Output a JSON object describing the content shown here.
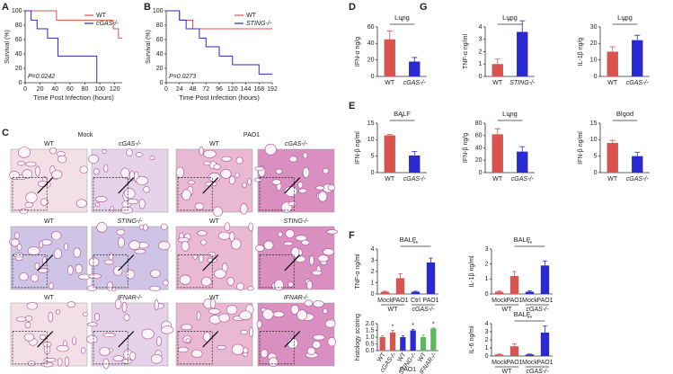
{
  "panel_letters": [
    "A",
    "B",
    "C",
    "D",
    "E",
    "F",
    "G"
  ],
  "histology": {
    "conditions": [
      "Mock",
      "PAO1"
    ],
    "rows": [
      [
        "WT",
        "cGAS-/-",
        "WT",
        "cGAS-/-"
      ],
      [
        "WT",
        "STING-/-",
        "WT",
        "STING-/-"
      ],
      [
        "WT",
        "IFNAR-/-",
        "WT",
        "IFNAR-/-"
      ]
    ]
  },
  "chart_data": [
    {
      "type": "line",
      "xlabel": "Time Post Infection (hours)",
      "ylabel": "Survival (%)",
      "annotation": "P=0.0242",
      "xlim": [
        0,
        130
      ],
      "xticks": [
        0,
        20,
        40,
        60,
        80,
        100,
        120
      ],
      "ylim": [
        0,
        100
      ],
      "yticks": [
        0,
        20,
        40,
        60,
        80,
        100
      ],
      "legend": "upper right",
      "series": [
        {
          "name": "WT",
          "color": "#d9534f",
          "x": [
            0,
            42,
            42,
            118,
            118,
            125,
            125,
            130
          ],
          "values": [
            100,
            100,
            87,
            87,
            75,
            75,
            62,
            62
          ]
        },
        {
          "name": "cGAS-/-",
          "color": "#2a2ad0",
          "x": [
            0,
            8,
            8,
            16,
            16,
            30,
            30,
            44,
            44,
            96,
            96
          ],
          "values": [
            100,
            100,
            87,
            87,
            75,
            75,
            62,
            62,
            37,
            37,
            0
          ]
        }
      ]
    },
    {
      "type": "line",
      "xlabel": "Time Post Infection (hours)",
      "ylabel": "Survival (%)",
      "annotation": "P=0.0273",
      "xlim": [
        0,
        192
      ],
      "xticks": [
        0,
        24,
        48,
        72,
        96,
        120,
        144,
        168,
        192
      ],
      "ylim": [
        0,
        100
      ],
      "yticks": [
        0,
        20,
        40,
        60,
        80,
        100
      ],
      "legend": "upper right",
      "series": [
        {
          "name": "WT",
          "color": "#d9534f",
          "x": [
            0,
            24,
            24,
            48,
            48,
            192
          ],
          "values": [
            100,
            100,
            87,
            87,
            75,
            75
          ]
        },
        {
          "name": "STING-/-",
          "color": "#2a2ad0",
          "x": [
            0,
            24,
            24,
            36,
            36,
            60,
            60,
            72,
            72,
            96,
            96,
            120,
            120,
            168,
            168,
            192
          ],
          "values": [
            100,
            100,
            87,
            87,
            75,
            75,
            62,
            62,
            50,
            50,
            37,
            37,
            25,
            25,
            12,
            12
          ]
        }
      ]
    },
    {
      "type": "bar",
      "title": "Lung",
      "ylabel": "IFN-α ng/g",
      "categories": [
        "WT",
        "cGAS-/-"
      ],
      "values": [
        45,
        18
      ],
      "errors": [
        10,
        5
      ],
      "colors": [
        "#d9534f",
        "#2a2ad0"
      ],
      "ylim": [
        0,
        60
      ],
      "yticks": [
        0,
        20,
        40,
        60
      ],
      "sig": "*"
    },
    {
      "type": "bar",
      "title": "Lung",
      "ylabel": "TNF-α ng/ml",
      "categories": [
        "WT",
        "STING-/-"
      ],
      "values": [
        1,
        3.6
      ],
      "errors": [
        0.4,
        0.9
      ],
      "colors": [
        "#d9534f",
        "#2a2ad0"
      ],
      "ylim": [
        0,
        4
      ],
      "yticks": [
        0,
        1,
        2,
        3,
        4
      ],
      "sig": "**"
    },
    {
      "type": "bar",
      "title": "Lung",
      "ylabel": "IL-1β ng/g",
      "categories": [
        "WT",
        "cGAS-/-"
      ],
      "values": [
        15,
        22
      ],
      "errors": [
        3,
        3
      ],
      "colors": [
        "#d9534f",
        "#2a2ad0"
      ],
      "ylim": [
        0,
        30
      ],
      "yticks": [
        0,
        10,
        20,
        30
      ],
      "sig": "**"
    },
    {
      "type": "bar",
      "title": "BALF",
      "ylabel": "IFN-β ng/ml",
      "categories": [
        "WT",
        "cGAS-/-"
      ],
      "values": [
        11.3,
        5.2
      ],
      "errors": [
        0.3,
        1.2
      ],
      "colors": [
        "#d9534f",
        "#2a2ad0"
      ],
      "ylim": [
        0,
        15
      ],
      "yticks": [
        0,
        5,
        10,
        15
      ],
      "sig": "*"
    },
    {
      "type": "bar",
      "title": "Lung",
      "ylabel": "IFN-β ng/g",
      "categories": [
        "WT",
        "cGAS-/-"
      ],
      "values": [
        62,
        34
      ],
      "errors": [
        9,
        8
      ],
      "colors": [
        "#d9534f",
        "#2a2ad0"
      ],
      "ylim": [
        0,
        80
      ],
      "yticks": [
        0,
        20,
        40,
        60,
        80
      ],
      "sig": "*"
    },
    {
      "type": "bar",
      "title": "Blood",
      "ylabel": "IFN-β ng/ml",
      "categories": [
        "WT",
        "cGAS-/-"
      ],
      "values": [
        9,
        5
      ],
      "errors": [
        0.8,
        1.2
      ],
      "colors": [
        "#d9534f",
        "#2a2ad0"
      ],
      "ylim": [
        0,
        15
      ],
      "yticks": [
        0,
        5,
        10,
        15
      ],
      "sig": "*"
    },
    {
      "type": "bar",
      "title": "BALF",
      "ylabel": "TNF-α ng/ml",
      "categories": [
        "Mock",
        "PAO1",
        "Ctrl",
        "PAO1"
      ],
      "groups": [
        "WT",
        "cGAS-/-"
      ],
      "values": [
        0.2,
        1.4,
        0.2,
        2.8
      ],
      "errors": [
        0.05,
        0.4,
        0.05,
        0.4
      ],
      "colors": [
        "#d9534f",
        "#d9534f",
        "#2a2ad0",
        "#2a2ad0"
      ],
      "ylim": [
        0,
        4
      ],
      "yticks": [
        0,
        1,
        2,
        3,
        4
      ],
      "sig": "**"
    },
    {
      "type": "bar",
      "title": "BALF",
      "ylabel": "IL-1β ng/ml",
      "categories": [
        "Mock",
        "PAO1",
        "Mock",
        "PAO1"
      ],
      "groups": [
        "WT",
        "cGAS-/-"
      ],
      "values": [
        0.15,
        1.2,
        0.15,
        1.9
      ],
      "errors": [
        0.05,
        0.3,
        0.05,
        0.3
      ],
      "colors": [
        "#d9534f",
        "#d9534f",
        "#2a2ad0",
        "#2a2ad0"
      ],
      "ylim": [
        0,
        3
      ],
      "yticks": [
        0,
        1,
        2,
        3
      ],
      "sig": "**"
    },
    {
      "type": "bar",
      "title": "BALF",
      "ylabel": "IL-6 ng/ml",
      "categories": [
        "Mock",
        "PAO1",
        "Mock",
        "PAO1"
      ],
      "groups": [
        "WT",
        "cGAS-/-"
      ],
      "values": [
        0.2,
        1.2,
        0.2,
        2.9
      ],
      "errors": [
        0.05,
        0.3,
        0.05,
        0.8
      ],
      "colors": [
        "#d9534f",
        "#d9534f",
        "#2a2ad0",
        "#2a2ad0"
      ],
      "ylim": [
        0,
        4
      ],
      "yticks": [
        0,
        1,
        2,
        3,
        4
      ],
      "sig": "**"
    },
    {
      "type": "bar",
      "ylabel": "histology scoring",
      "xlabel": "PAO1",
      "categories": [
        "WT",
        "cGAS-/-",
        "WT",
        "STING-/-",
        "WT",
        "IFNAR-/-"
      ],
      "values": [
        1,
        1.35,
        1,
        1.5,
        1,
        1.65
      ],
      "errors": [
        0.1,
        0.15,
        0.1,
        0.08,
        0.15,
        0.05
      ],
      "colors": [
        "#d9534f",
        "#d9534f",
        "#2a2ad0",
        "#2a2ad0",
        "#5cb85c",
        "#5cb85c"
      ],
      "ylim": [
        0,
        2
      ],
      "yticks": [
        {
          "value": 0,
          "label": "0.0"
        },
        {
          "value": 0.5,
          "label": "0.5"
        },
        {
          "value": 1,
          "label": "1.0"
        },
        {
          "value": 1.5,
          "label": "1.5"
        },
        {
          "value": 2,
          "label": "2.0"
        }
      ],
      "annotations": [
        {
          "index": 1,
          "text": "*"
        },
        {
          "index": 3,
          "text": "*"
        },
        {
          "index": 5,
          "text": "*"
        }
      ]
    }
  ]
}
